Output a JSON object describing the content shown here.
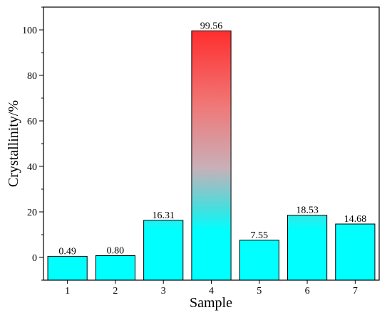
{
  "chart_data": {
    "type": "bar",
    "categories": [
      "1",
      "2",
      "3",
      "4",
      "5",
      "6",
      "7"
    ],
    "values": [
      0.49,
      0.8,
      16.31,
      99.56,
      7.55,
      18.53,
      14.68
    ],
    "value_labels": [
      "0.49",
      "0.80",
      "16.31",
      "99.56",
      "7.55",
      "18.53",
      "14.68"
    ],
    "title": "",
    "xlabel": "Sample",
    "ylabel": "Crystallinity/%",
    "ylim": [
      -10,
      110
    ],
    "yticks": [
      0,
      20,
      40,
      60,
      80,
      100
    ],
    "grid": false,
    "legend": "none",
    "bar_gradient": {
      "top": "#ff3030",
      "middle": "#e8a0a0",
      "bottom": "#00ffff"
    },
    "bar_outline": "#000000"
  }
}
